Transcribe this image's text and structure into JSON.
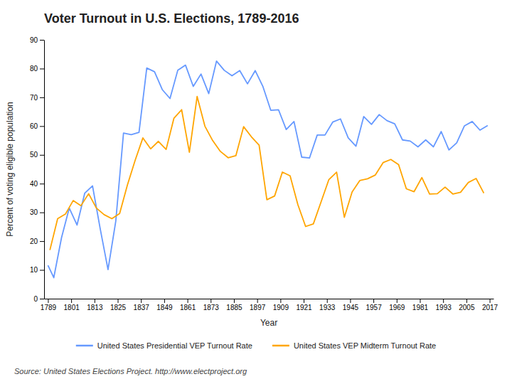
{
  "chart_data": {
    "type": "line",
    "title": "Voter Turnout in U.S. Elections, 1789-2016",
    "xlabel": "Year",
    "ylabel": "Percent of voting eligible population",
    "annotations": [
      "Source: United States Elections Project. http://www.electproject.org"
    ],
    "xlim": [
      1787,
      2019
    ],
    "xticks": [
      1789,
      1801,
      1813,
      1825,
      1837,
      1849,
      1861,
      1873,
      1885,
      1897,
      1909,
      1921,
      1933,
      1945,
      1957,
      1969,
      1981,
      1993,
      2005,
      2017
    ],
    "ylim": [
      0,
      90
    ],
    "yticks": [
      0,
      10,
      20,
      30,
      40,
      50,
      60,
      70,
      80,
      90
    ],
    "grid": false,
    "legend": "bottom",
    "series": [
      {
        "name": "United States Presidential VEP Turnout Rate",
        "color": "#6699FF",
        "x": [
          1789,
          1792,
          1796,
          1800,
          1804,
          1808,
          1812,
          1816,
          1820,
          1824,
          1828,
          1832,
          1836,
          1840,
          1844,
          1848,
          1852,
          1856,
          1860,
          1864,
          1868,
          1872,
          1876,
          1880,
          1884,
          1888,
          1892,
          1896,
          1900,
          1904,
          1908,
          1912,
          1916,
          1920,
          1924,
          1928,
          1932,
          1936,
          1940,
          1944,
          1948,
          1952,
          1956,
          1960,
          1964,
          1968,
          1972,
          1976,
          1980,
          1984,
          1988,
          1992,
          1996,
          2000,
          2004,
          2008,
          2012,
          2016
        ],
        "values": [
          11.6,
          7.3,
          21.2,
          31.5,
          25.6,
          36.7,
          39.2,
          24.2,
          10.1,
          26.9,
          57.6,
          57.0,
          57.8,
          80.2,
          78.9,
          72.7,
          69.6,
          79.4,
          81.2,
          73.8,
          78.1,
          71.3,
          82.6,
          79.4,
          77.5,
          79.3,
          74.7,
          79.3,
          73.7,
          65.5,
          65.7,
          58.8,
          61.6,
          49.2,
          48.9,
          56.9,
          56.9,
          61.4,
          62.5,
          55.9,
          53.0,
          63.3,
          60.6,
          64.0,
          61.9,
          60.8,
          55.2,
          54.8,
          52.8,
          55.2,
          52.8,
          58.1,
          51.7,
          54.2,
          60.1,
          61.6,
          58.6,
          60.2
        ]
      },
      {
        "name": "United States VEP Midterm Turnout Rate",
        "color": "#FFA500",
        "x": [
          1790,
          1794,
          1798,
          1802,
          1806,
          1810,
          1814,
          1818,
          1822,
          1826,
          1830,
          1834,
          1838,
          1842,
          1846,
          1850,
          1854,
          1858,
          1862,
          1866,
          1870,
          1874,
          1878,
          1882,
          1886,
          1890,
          1894,
          1898,
          1902,
          1906,
          1910,
          1914,
          1918,
          1922,
          1926,
          1930,
          1934,
          1938,
          1942,
          1946,
          1950,
          1954,
          1958,
          1962,
          1966,
          1970,
          1974,
          1978,
          1982,
          1986,
          1990,
          1994,
          1998,
          2002,
          2006,
          2010,
          2014
        ],
        "values": [
          16.9,
          27.8,
          29.4,
          34.1,
          32.3,
          36.5,
          31.5,
          29.2,
          27.8,
          29.6,
          39.5,
          48.1,
          55.9,
          52.1,
          54.7,
          51.9,
          62.7,
          65.7,
          50.9,
          70.3,
          60.0,
          55.0,
          51.2,
          49.0,
          49.7,
          59.8,
          56.3,
          53.4,
          34.4,
          35.7,
          44.0,
          42.7,
          32.7,
          25.1,
          26.0,
          33.7,
          41.4,
          44.0,
          28.3,
          37.1,
          41.1,
          41.7,
          43.0,
          47.3,
          48.4,
          46.6,
          38.2,
          37.2,
          42.1,
          36.4,
          36.5,
          38.8,
          36.4,
          37.0,
          40.4,
          41.8,
          36.7
        ]
      }
    ]
  }
}
